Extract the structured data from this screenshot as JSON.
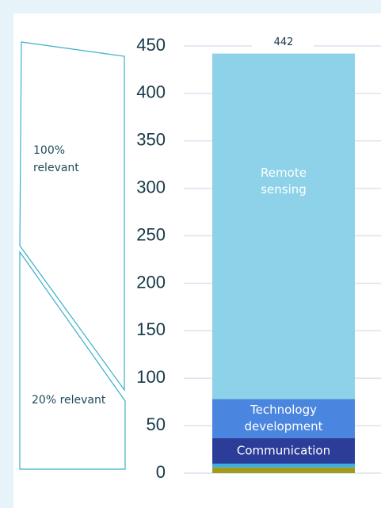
{
  "chart_data": {
    "type": "stacked_bar",
    "categories": [
      null
    ],
    "series": [
      {
        "color": "#a39b1c",
        "values": [
          6
        ]
      },
      {
        "color": "#3aaee0",
        "values": [
          4
        ]
      },
      {
        "name": "Communication",
        "color": "#2b3d98",
        "values": [
          27
        ]
      },
      {
        "name": "Technology development",
        "color": "#4a85df",
        "values": [
          41
        ]
      },
      {
        "name": "Remote sensing",
        "color": "#8dd2e8",
        "values": [
          364
        ]
      }
    ],
    "total_label": "442",
    "ylim": [
      0,
      450
    ],
    "yticks": [
      0,
      50,
      100,
      150,
      200,
      250,
      300,
      350,
      400,
      450
    ],
    "grid": true,
    "annotations": [
      "100% relevant",
      "20% relevant"
    ]
  }
}
